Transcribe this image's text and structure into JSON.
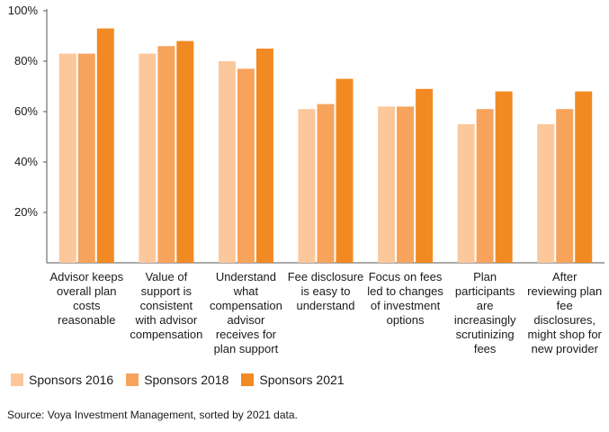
{
  "chart_data": {
    "type": "bar",
    "categories": [
      [
        "Advisor keeps",
        "overall plan",
        "costs",
        "reasonable"
      ],
      [
        "Value of",
        "support is",
        "consistent",
        "with advisor",
        "compensation"
      ],
      [
        "Understand",
        "what",
        "compensation",
        "advisor",
        "receives for",
        "plan support"
      ],
      [
        "Fee disclosure",
        "is easy to",
        "understand"
      ],
      [
        "Focus on fees",
        "led to changes",
        "of investment",
        "options"
      ],
      [
        "Plan",
        "participants",
        "are",
        "increasingly",
        "scrutinizing",
        "fees"
      ],
      [
        "After",
        "reviewing plan",
        "fee",
        "disclosures,",
        "might shop for",
        "new provider"
      ]
    ],
    "series": [
      {
        "name": "Sponsors 2016",
        "color": "#fcc89b",
        "values": [
          83,
          83,
          80,
          61,
          62,
          55,
          55
        ]
      },
      {
        "name": "Sponsors 2018",
        "color": "#f7a35c",
        "values": [
          83,
          86,
          77,
          63,
          62,
          61,
          61
        ]
      },
      {
        "name": "Sponsors 2021",
        "color": "#f18a23",
        "values": [
          93,
          88,
          85,
          73,
          69,
          68,
          68
        ]
      }
    ],
    "yticks": [
      "20%",
      "40%",
      "60%",
      "80%",
      "100%"
    ],
    "ytick_values": [
      20,
      40,
      60,
      80,
      100
    ],
    "ylim": [
      0,
      100
    ],
    "grid": false,
    "legend_position": "bottom-left"
  },
  "source": "Source: Voya Investment Management, sorted by 2021 data."
}
